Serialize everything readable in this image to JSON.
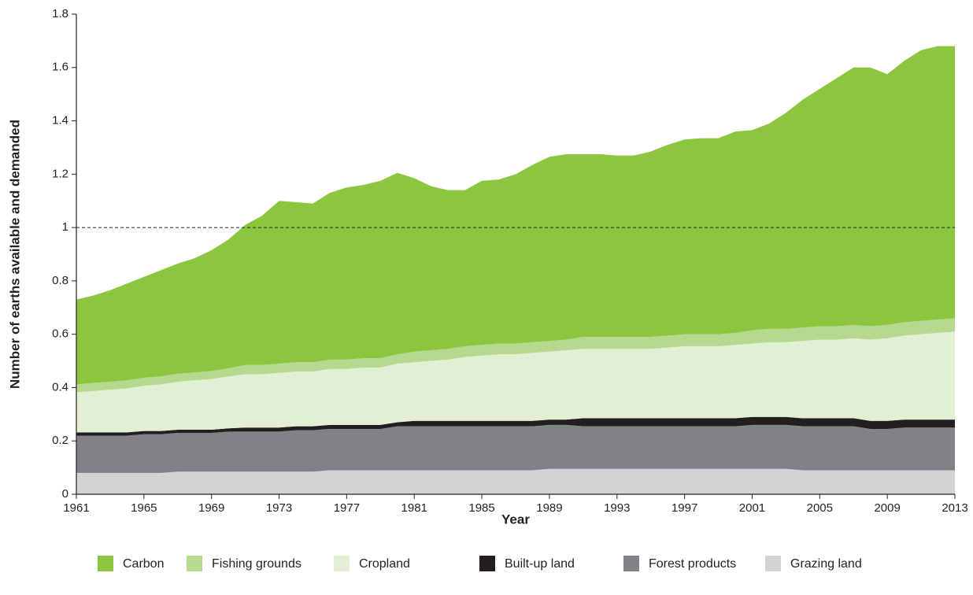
{
  "chart_data": {
    "type": "stacked_area",
    "x_label": "Year",
    "y_label": "Number of earths available and demanded",
    "x": [
      1961,
      1962,
      1963,
      1964,
      1965,
      1966,
      1967,
      1968,
      1969,
      1970,
      1971,
      1972,
      1973,
      1974,
      1975,
      1976,
      1977,
      1978,
      1979,
      1980,
      1981,
      1982,
      1983,
      1984,
      1985,
      1986,
      1987,
      1988,
      1989,
      1990,
      1991,
      1992,
      1993,
      1994,
      1995,
      1996,
      1997,
      1998,
      1999,
      2000,
      2001,
      2002,
      2003,
      2004,
      2005,
      2006,
      2007,
      2008,
      2009,
      2010,
      2011,
      2012,
      2013
    ],
    "xlim": [
      1961,
      2013
    ],
    "xticks": [
      1961,
      1965,
      1969,
      1973,
      1977,
      1981,
      1985,
      1989,
      1993,
      1997,
      2001,
      2005,
      2009,
      2013
    ],
    "ylim": [
      0,
      1.8
    ],
    "yticks": [
      0,
      0.2,
      0.4,
      0.6,
      0.8,
      1,
      1.2,
      1.4,
      1.6,
      1.8
    ],
    "hline": 1,
    "series": [
      {
        "name": "Carbon",
        "color": "#8cc63f",
        "values": [
          0.318,
          0.328,
          0.343,
          0.363,
          0.378,
          0.398,
          0.413,
          0.428,
          0.453,
          0.483,
          0.525,
          0.56,
          0.61,
          0.6,
          0.595,
          0.625,
          0.645,
          0.65,
          0.665,
          0.68,
          0.65,
          0.615,
          0.595,
          0.585,
          0.615,
          0.615,
          0.635,
          0.665,
          0.69,
          0.695,
          0.685,
          0.685,
          0.68,
          0.68,
          0.695,
          0.715,
          0.73,
          0.735,
          0.735,
          0.755,
          0.75,
          0.77,
          0.81,
          0.855,
          0.89,
          0.93,
          0.965,
          0.97,
          0.94,
          0.98,
          1.015,
          1.025,
          1.02
        ]
      },
      {
        "name": "Fishing grounds",
        "color": "#b5d98e",
        "values": [
          0.03,
          0.03,
          0.03,
          0.03,
          0.03,
          0.03,
          0.03,
          0.03,
          0.03,
          0.03,
          0.035,
          0.035,
          0.035,
          0.035,
          0.035,
          0.035,
          0.035,
          0.035,
          0.035,
          0.035,
          0.04,
          0.04,
          0.04,
          0.04,
          0.04,
          0.04,
          0.04,
          0.04,
          0.04,
          0.04,
          0.045,
          0.045,
          0.045,
          0.045,
          0.045,
          0.045,
          0.045,
          0.045,
          0.045,
          0.045,
          0.05,
          0.05,
          0.05,
          0.05,
          0.05,
          0.05,
          0.05,
          0.05,
          0.05,
          0.05,
          0.05,
          0.05,
          0.05
        ]
      },
      {
        "name": "Cropland",
        "color": "#e3efd4",
        "values": [
          0.15,
          0.155,
          0.16,
          0.165,
          0.17,
          0.175,
          0.18,
          0.185,
          0.19,
          0.195,
          0.2,
          0.2,
          0.205,
          0.205,
          0.205,
          0.21,
          0.21,
          0.215,
          0.215,
          0.22,
          0.22,
          0.225,
          0.23,
          0.24,
          0.245,
          0.25,
          0.25,
          0.255,
          0.255,
          0.26,
          0.26,
          0.26,
          0.26,
          0.26,
          0.26,
          0.265,
          0.27,
          0.27,
          0.27,
          0.275,
          0.275,
          0.28,
          0.28,
          0.29,
          0.295,
          0.295,
          0.3,
          0.305,
          0.31,
          0.315,
          0.32,
          0.325,
          0.33
        ]
      },
      {
        "name": "Built-up land",
        "color": "#231f20",
        "values": [
          0.012,
          0.012,
          0.012,
          0.012,
          0.012,
          0.012,
          0.012,
          0.012,
          0.012,
          0.012,
          0.015,
          0.015,
          0.015,
          0.015,
          0.015,
          0.015,
          0.015,
          0.015,
          0.015,
          0.015,
          0.02,
          0.02,
          0.02,
          0.02,
          0.02,
          0.02,
          0.02,
          0.02,
          0.02,
          0.02,
          0.03,
          0.03,
          0.03,
          0.03,
          0.03,
          0.03,
          0.03,
          0.03,
          0.03,
          0.03,
          0.03,
          0.03,
          0.03,
          0.03,
          0.03,
          0.03,
          0.03,
          0.03,
          0.03,
          0.03,
          0.03,
          0.03,
          0.03
        ]
      },
      {
        "name": "Forest products",
        "color": "#808285",
        "values": [
          0.14,
          0.14,
          0.14,
          0.14,
          0.145,
          0.145,
          0.145,
          0.145,
          0.145,
          0.15,
          0.15,
          0.15,
          0.15,
          0.155,
          0.155,
          0.155,
          0.155,
          0.155,
          0.155,
          0.165,
          0.165,
          0.165,
          0.165,
          0.165,
          0.165,
          0.165,
          0.165,
          0.165,
          0.165,
          0.165,
          0.16,
          0.16,
          0.16,
          0.16,
          0.16,
          0.16,
          0.16,
          0.16,
          0.16,
          0.16,
          0.165,
          0.165,
          0.165,
          0.165,
          0.165,
          0.165,
          0.165,
          0.155,
          0.155,
          0.16,
          0.16,
          0.16,
          0.16
        ]
      },
      {
        "name": "Grazing land",
        "color": "#d1d3d4",
        "values": [
          0.08,
          0.08,
          0.08,
          0.08,
          0.08,
          0.08,
          0.085,
          0.085,
          0.085,
          0.085,
          0.085,
          0.085,
          0.085,
          0.085,
          0.085,
          0.09,
          0.09,
          0.09,
          0.09,
          0.09,
          0.09,
          0.09,
          0.09,
          0.09,
          0.09,
          0.09,
          0.09,
          0.09,
          0.095,
          0.095,
          0.095,
          0.095,
          0.095,
          0.095,
          0.095,
          0.095,
          0.095,
          0.095,
          0.095,
          0.095,
          0.095,
          0.095,
          0.095,
          0.09,
          0.09,
          0.09,
          0.09,
          0.09,
          0.09,
          0.09,
          0.09,
          0.09,
          0.09
        ]
      }
    ]
  }
}
